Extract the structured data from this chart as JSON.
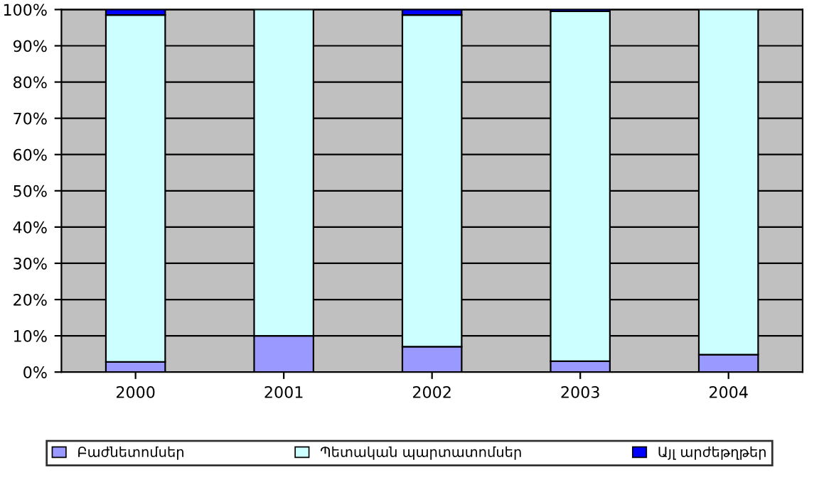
{
  "chart_data": {
    "type": "bar",
    "stacked": true,
    "categories": [
      "2000",
      "2001",
      "2002",
      "2003",
      "2004"
    ],
    "series": [
      {
        "name": "Բաժնետոմսեր",
        "color": "#9999ff",
        "values": [
          2.8,
          10,
          7,
          3,
          4.8
        ]
      },
      {
        "name": "Պետական պարտատոմսեր",
        "color": "#ccffff",
        "values": [
          95.7,
          90,
          91.5,
          96.5,
          95.2
        ]
      },
      {
        "name": "Այլ արժեթղթեր",
        "color": "#0000ff",
        "values": [
          1.5,
          0,
          1.5,
          0.5,
          0
        ]
      }
    ],
    "ylim": [
      0,
      100
    ],
    "yticks": [
      {
        "value": 0,
        "label": "0%"
      },
      {
        "value": 10,
        "label": "10%"
      },
      {
        "value": 20,
        "label": "20%"
      },
      {
        "value": 30,
        "label": "30%"
      },
      {
        "value": 40,
        "label": "40%"
      },
      {
        "value": 50,
        "label": "50%"
      },
      {
        "value": 60,
        "label": "60%"
      },
      {
        "value": 70,
        "label": "70%"
      },
      {
        "value": 80,
        "label": "80%"
      },
      {
        "value": 90,
        "label": "90%"
      },
      {
        "value": 100,
        "label": "100%"
      }
    ],
    "grid": "y",
    "legend": "bottom"
  }
}
